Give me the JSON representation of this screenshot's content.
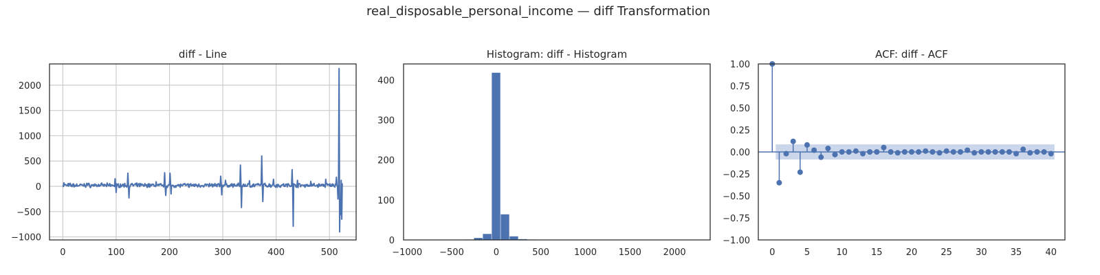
{
  "figure": {
    "suptitle": "real_disposable_personal_income — diff Transformation",
    "colors": {
      "series": "#4c72b0",
      "band": "#c5d1e8",
      "grid": "#cccccc",
      "axes": "#262626",
      "text": "#262626"
    }
  },
  "chart_data": [
    {
      "type": "line",
      "title": "diff - Line",
      "xlabel": "",
      "ylabel": "",
      "xlim": [
        -25,
        550
      ],
      "ylim": [
        -1060,
        2420
      ],
      "xticks": [
        0,
        100,
        200,
        300,
        400,
        500
      ],
      "yticks": [
        -1000,
        -500,
        0,
        500,
        1000,
        1500,
        2000
      ],
      "grid": true,
      "series": [
        {
          "noise_amplitude": 30,
          "length": 525,
          "spikes": [
            [
              2,
              70
            ],
            [
              12,
              55
            ],
            [
              45,
              60
            ],
            [
              98,
              150
            ],
            [
              100,
              -120
            ],
            [
              122,
              260
            ],
            [
              124,
              -230
            ],
            [
              175,
              90
            ],
            [
              191,
              270
            ],
            [
              193,
              -180
            ],
            [
              201,
              260
            ],
            [
              203,
              -150
            ],
            [
              296,
              200
            ],
            [
              298,
              -170
            ],
            [
              305,
              120
            ],
            [
              333,
              420
            ],
            [
              335,
              -420
            ],
            [
              350,
              110
            ],
            [
              373,
              600
            ],
            [
              375,
              -300
            ],
            [
              395,
              140
            ],
            [
              430,
              330
            ],
            [
              432,
              -790
            ],
            [
              440,
              120
            ],
            [
              465,
              100
            ],
            [
              493,
              140
            ],
            [
              513,
              180
            ],
            [
              516,
              -250
            ],
            [
              518,
              2330
            ],
            [
              519,
              -900
            ],
            [
              520,
              -300
            ],
            [
              521,
              -560
            ],
            [
              522,
              120
            ],
            [
              523,
              -650
            ],
            [
              524,
              60
            ]
          ]
        }
      ]
    },
    {
      "type": "bar",
      "title": "Histogram: diff - Histogram",
      "xlabel": "",
      "ylabel": "",
      "xlim": [
        -1040,
        2400
      ],
      "ylim": [
        0,
        440
      ],
      "xticks": [
        -1000,
        -500,
        0,
        500,
        1000,
        1500,
        2000
      ],
      "yticks": [
        0,
        100,
        200,
        300,
        400
      ],
      "grid": false,
      "bin_width": 100,
      "bins": [
        {
          "x0": -350,
          "count": 1
        },
        {
          "x0": -250,
          "count": 5
        },
        {
          "x0": -150,
          "count": 15
        },
        {
          "x0": -50,
          "count": 418
        },
        {
          "x0": 50,
          "count": 64
        },
        {
          "x0": 150,
          "count": 9
        },
        {
          "x0": 250,
          "count": 2
        },
        {
          "x0": 350,
          "count": 1
        }
      ]
    },
    {
      "type": "scatter",
      "title": "ACF: diff - ACF",
      "xlabel": "",
      "ylabel": "",
      "xlim": [
        -2,
        42
      ],
      "ylim": [
        -1.0,
        1.0
      ],
      "xticks": [
        0,
        5,
        10,
        15,
        20,
        25,
        30,
        35,
        40
      ],
      "yticks": [
        -1.0,
        -0.75,
        -0.5,
        -0.25,
        0.0,
        0.25,
        0.5,
        0.75,
        1.0
      ],
      "ytick_labels": [
        "−1.00",
        "−0.75",
        "−0.50",
        "−0.25",
        "0.00",
        "0.25",
        "0.50",
        "0.75",
        "1.00"
      ],
      "grid": false,
      "confidence_band": 0.086,
      "lags": [
        0,
        1,
        2,
        3,
        4,
        5,
        6,
        7,
        8,
        9,
        10,
        11,
        12,
        13,
        14,
        15,
        16,
        17,
        18,
        19,
        20,
        21,
        22,
        23,
        24,
        25,
        26,
        27,
        28,
        29,
        30,
        31,
        32,
        33,
        34,
        35,
        36,
        37,
        38,
        39,
        40
      ],
      "values": [
        1.0,
        -0.35,
        -0.02,
        0.12,
        -0.23,
        0.08,
        0.02,
        -0.06,
        0.04,
        -0.03,
        0.0,
        0.0,
        0.01,
        -0.02,
        0.0,
        0.0,
        0.05,
        0.0,
        -0.01,
        0.0,
        0.0,
        0.0,
        0.01,
        0.0,
        -0.01,
        0.01,
        0.0,
        0.0,
        0.02,
        -0.01,
        0.0,
        0.0,
        0.0,
        0.0,
        0.0,
        -0.02,
        0.03,
        -0.01,
        0.0,
        0.0,
        -0.02
      ]
    }
  ]
}
